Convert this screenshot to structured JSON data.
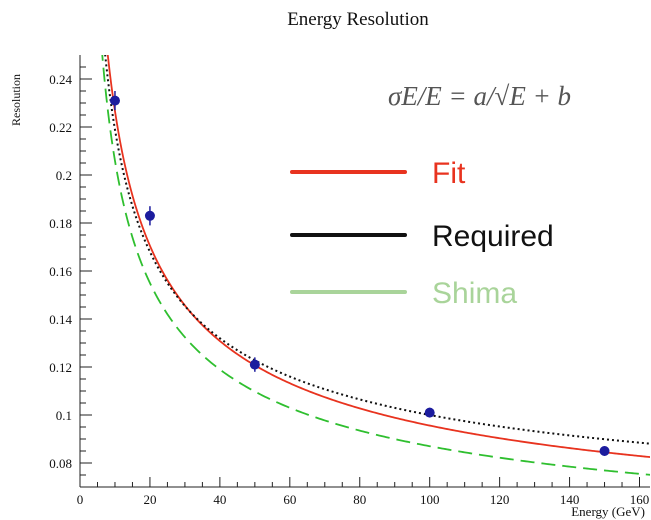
{
  "chart_data": {
    "type": "scatter",
    "title": "Energy Resolution",
    "xlabel": "Energy (GeV)",
    "ylabel": "Resolution",
    "xlim": [
      0,
      163
    ],
    "ylim": [
      0.07,
      0.25
    ],
    "xticks": [
      0,
      20,
      40,
      60,
      80,
      100,
      120,
      140,
      160
    ],
    "yticks": [
      0.08,
      0.1,
      0.12,
      0.14,
      0.16,
      0.18,
      0.2,
      0.22,
      0.24
    ],
    "formula": "σE/E = a/√E + b",
    "grid": false,
    "legend_position": "right",
    "points": {
      "x": [
        10,
        20,
        50,
        100,
        150
      ],
      "y": [
        0.231,
        0.183,
        0.121,
        0.101,
        0.085
      ],
      "yerr": [
        0.004,
        0.004,
        0.003,
        0.002,
        0.002
      ],
      "color": "#1c1c9e"
    },
    "curves": [
      {
        "name": "Fit",
        "a": 0.606,
        "b": 0.035,
        "color": "#e8331f",
        "style": "solid"
      },
      {
        "name": "Required",
        "a": 0.55,
        "b": 0.045,
        "color": "#111111",
        "style": "dotted"
      },
      {
        "name": "Shima",
        "a": 0.55,
        "b": 0.032,
        "color": "#2fbf2f",
        "style": "dashed"
      }
    ],
    "legend": [
      {
        "label": "Fit",
        "line_color": "#e8331f",
        "text_color": "#e8331f"
      },
      {
        "label": "Required",
        "line_color": "#111111",
        "text_color": "#111111"
      },
      {
        "label": "Shima",
        "line_color": "#a9d49a",
        "text_color": "#a9d49a"
      }
    ]
  }
}
